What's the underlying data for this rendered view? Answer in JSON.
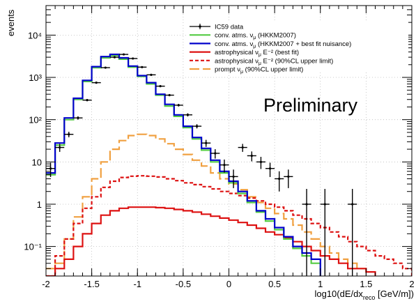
{
  "chart_data": {
    "type": "line",
    "ylabel": "events",
    "xlabel_main": "log10(dE/dx",
    "xlabel_sub": "reco",
    "xlabel_end": " [GeV/m])",
    "xlim": [
      -2,
      2
    ],
    "ylim": [
      0.02,
      50000
    ],
    "yscale": "log",
    "grid": true,
    "legend_position": "top-right",
    "annotation": "Preliminary",
    "x_ticks": [
      -2,
      -1.5,
      -1,
      -0.5,
      0,
      0.5,
      1,
      1.5,
      2
    ],
    "x_tick_labels": [
      "-2",
      "-1.5",
      "-1",
      "-0.5",
      "0",
      "0.5",
      "1",
      "1.5",
      "2"
    ],
    "y_ticks": [
      0.1,
      1,
      10,
      100,
      1000,
      10000
    ],
    "y_tick_labels": [
      "10⁻¹",
      "1",
      "10",
      "10²",
      "10³",
      "10⁴"
    ],
    "bin_edges": [
      -2.0,
      -1.9,
      -1.8,
      -1.7,
      -1.6,
      -1.5,
      -1.4,
      -1.3,
      -1.2,
      -1.1,
      -1.0,
      -0.9,
      -0.8,
      -0.7,
      -0.6,
      -0.5,
      -0.4,
      -0.3,
      -0.2,
      -0.1,
      0.0,
      0.1,
      0.2,
      0.3,
      0.4,
      0.5,
      0.6,
      0.7,
      0.8,
      0.9,
      1.0,
      1.1,
      1.2,
      1.3,
      1.4,
      1.5,
      1.6,
      1.7,
      1.8,
      1.9,
      2.0
    ],
    "series": [
      {
        "name": "conv. atms. νμ (HKKM2007)",
        "legend_main": "conv. atms. ν",
        "legend_sub": "μ",
        "legend_tail": " (HKKM2007)",
        "style": "hist",
        "color": "#55cc44",
        "dash": "solid",
        "width": 2.2,
        "values": [
          5,
          25,
          100,
          300,
          800,
          1700,
          2900,
          3300,
          2700,
          1750,
          1050,
          700,
          380,
          210,
          120,
          65,
          35,
          19,
          10,
          5.5,
          3.2,
          1.8,
          1.1,
          0.65,
          0.4,
          0.25,
          0.15,
          0.09,
          0.06,
          0.04
        ]
      },
      {
        "name": "conv. atms. νμ (HKKM2007 + best fit nuisance)",
        "legend_main": "conv. atms. ν",
        "legend_sub": "μ",
        "legend_tail": " (HKKM2007 + best fit nuisance)",
        "style": "hist",
        "color": "#0000cc",
        "dash": "solid",
        "width": 2.2,
        "values": [
          5.5,
          28,
          110,
          320,
          850,
          1800,
          3100,
          3500,
          2900,
          1850,
          1100,
          750,
          400,
          230,
          130,
          70,
          38,
          21,
          11,
          6,
          3.5,
          2,
          1.2,
          0.7,
          0.45,
          0.28,
          0.17,
          0.1,
          0.07,
          0.05
        ]
      },
      {
        "name": "astrophysical νμ E⁻² (best fit)",
        "legend_main": "astrophysical ν",
        "legend_sub": "μ",
        "legend_tail": " E⁻² (best fit)",
        "style": "hist",
        "color": "#dd1111",
        "dash": "solid",
        "width": 2.2,
        "values": [
          0.02,
          0.03,
          0.05,
          0.1,
          0.2,
          0.35,
          0.55,
          0.7,
          0.8,
          0.85,
          0.85,
          0.85,
          0.83,
          0.8,
          0.75,
          0.7,
          0.65,
          0.58,
          0.52,
          0.47,
          0.42,
          0.37,
          0.32,
          0.27,
          0.22,
          0.19,
          0.16,
          0.13,
          0.1,
          0.08,
          0.06,
          0.05,
          0.04,
          0.03,
          0.03,
          0.025
        ]
      },
      {
        "name": "astrophysical νμ E⁻² (90%CL upper limit)",
        "legend_main": "astrophysical ν",
        "legend_sub": "μ",
        "legend_tail": " E⁻² (90%CL upper limit)",
        "style": "hist",
        "color": "#dd1111",
        "dash": "dashed",
        "width": 2.2,
        "values": [
          0.02,
          0.06,
          0.15,
          0.35,
          0.8,
          1.5,
          2.5,
          3.5,
          4.3,
          4.6,
          4.7,
          4.6,
          4.4,
          4.0,
          3.6,
          3.2,
          2.9,
          2.6,
          2.3,
          2.0,
          1.8,
          1.6,
          1.4,
          1.2,
          1.0,
          0.85,
          0.7,
          0.55,
          0.45,
          0.35,
          0.28,
          0.22,
          0.17,
          0.13,
          0.1,
          0.08,
          0.06,
          0.05,
          0.04,
          0.03
        ]
      },
      {
        "name": "prompt νμ (90%CL upper limit)",
        "legend_main": "prompt ν",
        "legend_sub": "μ",
        "legend_tail": " (90%CL upper limit)",
        "style": "hist",
        "color": "#f0a040",
        "dash": "long-dash",
        "width": 2.2,
        "values": [
          0.03,
          0.04,
          0.15,
          0.5,
          1.5,
          4,
          10,
          20,
          32,
          42,
          45,
          42,
          35,
          27,
          20,
          15,
          11,
          8,
          5.5,
          4,
          3,
          2.2,
          1.5,
          1.1,
          0.8,
          0.6,
          0.45,
          0.32,
          0.22,
          0.15,
          0.1,
          0.07,
          0.05,
          0.04,
          0.03
        ]
      },
      {
        "name": "IC59 data",
        "legend_main": "IC59 data",
        "legend_sub": "",
        "legend_tail": "",
        "style": "points",
        "color": "#000000",
        "x": [
          -1.95,
          -1.85,
          -1.75,
          -1.65,
          -1.55,
          -1.45,
          -1.35,
          -1.25,
          -1.15,
          -1.05,
          -0.95,
          -0.85,
          -0.75,
          -0.65,
          -0.55,
          -0.45,
          -0.35,
          -0.25,
          -0.15,
          -0.05,
          0.05,
          0.15,
          0.25,
          0.35,
          0.45,
          0.55,
          0.65,
          0.85,
          1.05,
          1.35
        ],
        "y": [
          7,
          22,
          45,
          110,
          290,
          750,
          1700,
          3000,
          3500,
          2800,
          1750,
          1150,
          620,
          380,
          220,
          130,
          70,
          28,
          16,
          8.5,
          4.5,
          22,
          14,
          10,
          7,
          4,
          4.5,
          1,
          1,
          1
        ],
        "err_low": [
          2.6,
          4.7,
          6.7,
          10,
          17,
          27,
          41,
          55,
          59,
          53,
          42,
          34,
          25,
          19,
          15,
          11,
          8,
          5.3,
          4,
          2.9,
          2.1,
          4.7,
          3.7,
          3.2,
          2.6,
          2,
          2.1,
          0.98,
          0.98,
          0.98
        ],
        "err_high": [
          2.6,
          4.7,
          6.7,
          10,
          17,
          27,
          41,
          55,
          59,
          53,
          42,
          34,
          25,
          19,
          15,
          11,
          8,
          5.3,
          4,
          2.9,
          2.1,
          4.7,
          3.7,
          3.2,
          2.6,
          2,
          2.1,
          1.3,
          1.3,
          1.3
        ]
      }
    ]
  }
}
